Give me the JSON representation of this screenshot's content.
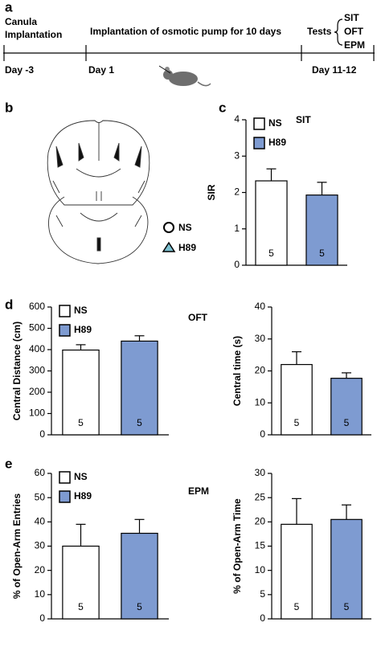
{
  "panels": [
    "a",
    "b",
    "c",
    "d",
    "e"
  ],
  "timeline": {
    "start_event": [
      "Canula",
      "Implantation"
    ],
    "middle_event": "Implantation of osmotic pump for 10 days",
    "tests_label": "Tests",
    "tests": [
      "SIT",
      "OFT",
      "EPM"
    ],
    "days": [
      "Day -3",
      "Day 1",
      "Day 11-12"
    ]
  },
  "brain_legend": [
    "NS",
    "H89"
  ],
  "chart_data": [
    {
      "type": "bar",
      "title": "SIT",
      "ylabel": "SIR",
      "ylim": [
        0,
        4
      ],
      "yticks": [
        0,
        1,
        2,
        3,
        4
      ],
      "legend": true,
      "series": [
        {
          "name": "NS",
          "color": "#ffffff",
          "values": [
            2.32
          ],
          "errors": [
            0.33
          ],
          "n": [
            5
          ]
        },
        {
          "name": "H89",
          "color": "#7e9bd1",
          "values": [
            1.93
          ],
          "errors": [
            0.35
          ],
          "n": [
            5
          ]
        }
      ]
    },
    {
      "type": "bar",
      "title": "OFT",
      "ylabel": "Central Distance (cm)",
      "ylim": [
        0,
        600
      ],
      "yticks": [
        0,
        100,
        200,
        300,
        400,
        500,
        600
      ],
      "legend": true,
      "series": [
        {
          "name": "NS",
          "color": "#ffffff",
          "values": [
            398
          ],
          "errors": [
            25
          ],
          "n": [
            5
          ]
        },
        {
          "name": "H89",
          "color": "#7e9bd1",
          "values": [
            440
          ],
          "errors": [
            25
          ],
          "n": [
            5
          ]
        }
      ]
    },
    {
      "type": "bar",
      "ylabel": "Central time (s)",
      "ylim": [
        0,
        40
      ],
      "yticks": [
        0,
        10,
        20,
        30,
        40
      ],
      "legend": false,
      "series": [
        {
          "name": "NS",
          "color": "#ffffff",
          "values": [
            22
          ],
          "errors": [
            4
          ],
          "n": [
            5
          ]
        },
        {
          "name": "H89",
          "color": "#7e9bd1",
          "values": [
            17.7
          ],
          "errors": [
            1.7
          ],
          "n": [
            5
          ]
        }
      ]
    },
    {
      "type": "bar",
      "title": "EPM",
      "ylabel": "% of Open-Arm Entries",
      "ylim": [
        0,
        60
      ],
      "yticks": [
        0,
        10,
        20,
        30,
        40,
        50,
        60
      ],
      "legend": true,
      "series": [
        {
          "name": "NS",
          "color": "#ffffff",
          "values": [
            30
          ],
          "errors": [
            9
          ],
          "n": [
            5
          ]
        },
        {
          "name": "H89",
          "color": "#7e9bd1",
          "values": [
            35.3
          ],
          "errors": [
            5.7
          ],
          "n": [
            5
          ]
        }
      ]
    },
    {
      "type": "bar",
      "ylabel": "% of Open-Arm Time",
      "ylim": [
        0,
        30
      ],
      "yticks": [
        0,
        5,
        10,
        15,
        20,
        25,
        30
      ],
      "legend": false,
      "series": [
        {
          "name": "NS",
          "color": "#ffffff",
          "values": [
            19.5
          ],
          "errors": [
            5.3
          ],
          "n": [
            5
          ]
        },
        {
          "name": "H89",
          "color": "#7e9bd1",
          "values": [
            20.5
          ],
          "errors": [
            3
          ],
          "n": [
            5
          ]
        }
      ]
    }
  ]
}
